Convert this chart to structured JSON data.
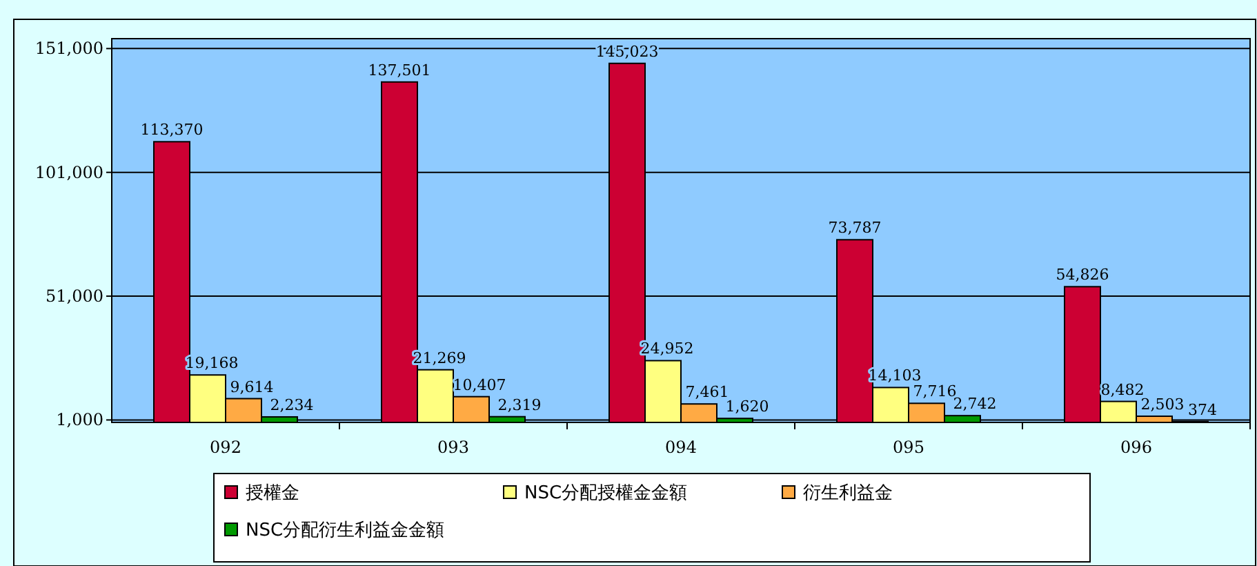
{
  "chart_data": {
    "type": "bar",
    "categories": [
      "092",
      "093",
      "094",
      "095",
      "096"
    ],
    "series": [
      {
        "name": "授權金",
        "color": "#cc0033",
        "values": [
          113370,
          137501,
          145023,
          73787,
          54826
        ],
        "value_labels": [
          "113,370",
          "137,501",
          "145,023",
          "73,787",
          "54,826"
        ]
      },
      {
        "name": "NSC分配授權金金額",
        "color": "#ffff80",
        "values": [
          19168,
          21269,
          24952,
          14103,
          8482
        ],
        "value_labels": [
          "19,168",
          "21,269",
          "24,952",
          "14,103",
          "8,482"
        ]
      },
      {
        "name": "衍生利益金",
        "color": "#ffaa44",
        "values": [
          9614,
          10407,
          7461,
          7716,
          2503
        ],
        "value_labels": [
          "9,614",
          "10,407",
          "7,461",
          "7,716",
          "2,503"
        ]
      },
      {
        "name": "NSC分配衍生利益金金額",
        "color": "#009900",
        "values": [
          2234,
          2319,
          1620,
          2742,
          374
        ],
        "value_labels": [
          "2,234",
          "2,319",
          "1,620",
          "2,742",
          "374"
        ]
      }
    ],
    "ylim": [
      0,
      155000
    ],
    "yticks": [
      {
        "value": 1000,
        "label": "1,000"
      },
      {
        "value": 51000,
        "label": "51,000"
      },
      {
        "value": 101000,
        "label": "101,000"
      },
      {
        "value": 151000,
        "label": "151,000"
      }
    ],
    "grid": "y",
    "legend": "bottom"
  }
}
